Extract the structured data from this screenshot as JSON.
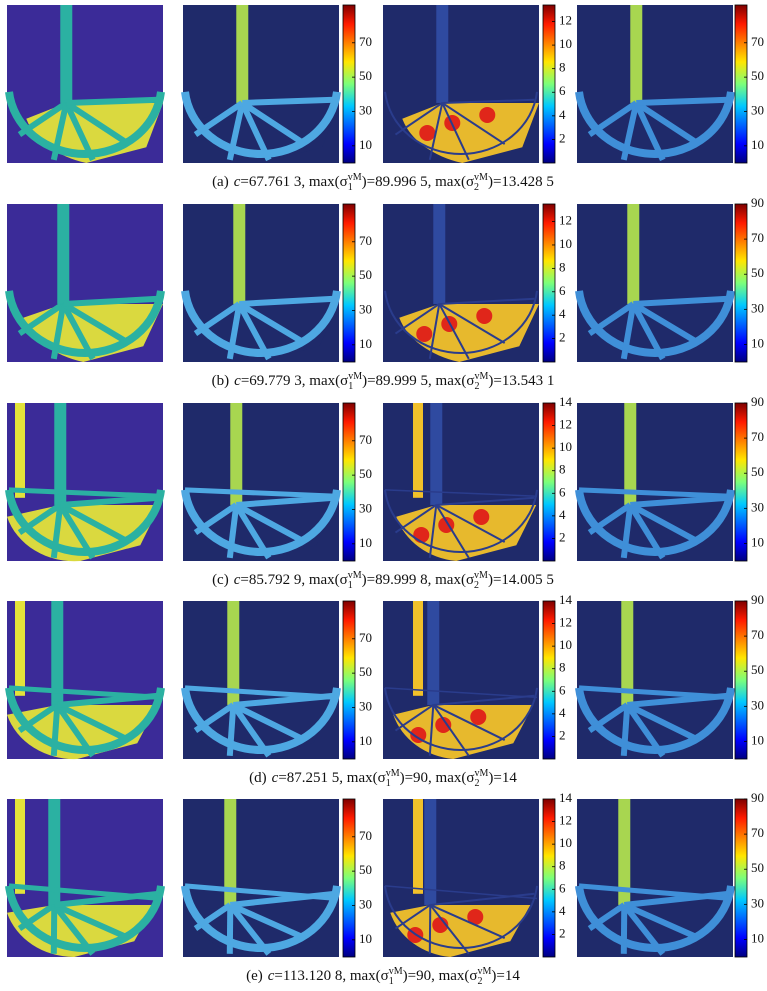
{
  "rows": [
    {
      "caption": [
        {
          "text": "(a)"
        },
        {
          "text": "c",
          "style": "italic"
        },
        {
          "text": "=67.761 3, max(σ"
        },
        {
          "text": "1",
          "style": "sub"
        },
        {
          "text": "vM",
          "style": "sup"
        },
        {
          "text": ")=89.996 5, max(σ"
        },
        {
          "text": "2",
          "style": "sub"
        },
        {
          "text": "vM",
          "style": "sup"
        },
        {
          "text": ")=13.428 5"
        }
      ],
      "colorbars": [
        {
          "lim": [
            0,
            92
          ],
          "ticks": [
            10,
            30,
            50,
            70
          ]
        },
        {
          "lim": [
            0,
            13.4
          ],
          "ticks": [
            2,
            4,
            6,
            8,
            10,
            12
          ]
        },
        {
          "lim": [
            0,
            92
          ],
          "ticks": [
            10,
            30,
            50,
            70
          ]
        }
      ]
    },
    {
      "caption": [
        {
          "text": "(b)"
        },
        {
          "text": "c",
          "style": "italic"
        },
        {
          "text": "=69.779 3, max(σ"
        },
        {
          "text": "1",
          "style": "sub"
        },
        {
          "text": "vM",
          "style": "sup"
        },
        {
          "text": ")=89.999 5, max(σ"
        },
        {
          "text": "2",
          "style": "sub"
        },
        {
          "text": "vM",
          "style": "sup"
        },
        {
          "text": ")=13.543 1"
        }
      ],
      "colorbars": [
        {
          "lim": [
            0,
            92
          ],
          "ticks": [
            10,
            30,
            50,
            70
          ]
        },
        {
          "lim": [
            0,
            13.5
          ],
          "ticks": [
            2,
            4,
            6,
            8,
            10,
            12
          ]
        },
        {
          "lim": [
            0,
            90
          ],
          "ticks": [
            10,
            30,
            50,
            70,
            90
          ]
        }
      ]
    },
    {
      "caption": [
        {
          "text": "(c)"
        },
        {
          "text": "c",
          "style": "italic"
        },
        {
          "text": "=85.792 9, max(σ"
        },
        {
          "text": "1",
          "style": "sub"
        },
        {
          "text": "vM",
          "style": "sup"
        },
        {
          "text": ")=89.999 8, max(σ"
        },
        {
          "text": "2",
          "style": "sub"
        },
        {
          "text": "vM",
          "style": "sup"
        },
        {
          "text": ")=14.005 5"
        }
      ],
      "colorbars": [
        {
          "lim": [
            0,
            92
          ],
          "ticks": [
            10,
            30,
            50,
            70
          ]
        },
        {
          "lim": [
            0,
            14
          ],
          "ticks": [
            2,
            4,
            6,
            8,
            10,
            12,
            14
          ]
        },
        {
          "lim": [
            0,
            90
          ],
          "ticks": [
            10,
            30,
            50,
            70,
            90
          ]
        }
      ]
    },
    {
      "caption": [
        {
          "text": "(d)"
        },
        {
          "text": "c",
          "style": "italic"
        },
        {
          "text": "=87.251 5, max(σ"
        },
        {
          "text": "1",
          "style": "sub"
        },
        {
          "text": "vM",
          "style": "sup"
        },
        {
          "text": ")=90, max(σ"
        },
        {
          "text": "2",
          "style": "sub"
        },
        {
          "text": "vM",
          "style": "sup"
        },
        {
          "text": ")=14"
        }
      ],
      "colorbars": [
        {
          "lim": [
            0,
            92
          ],
          "ticks": [
            10,
            30,
            50,
            70
          ]
        },
        {
          "lim": [
            0,
            14
          ],
          "ticks": [
            2,
            4,
            6,
            8,
            10,
            12,
            14
          ]
        },
        {
          "lim": [
            0,
            90
          ],
          "ticks": [
            10,
            30,
            50,
            70,
            90
          ]
        }
      ]
    },
    {
      "caption": [
        {
          "text": "(e)"
        },
        {
          "text": "c",
          "style": "italic"
        },
        {
          "text": "=113.120 8, max(σ"
        },
        {
          "text": "1",
          "style": "sub"
        },
        {
          "text": "vM",
          "style": "sup"
        },
        {
          "text": ")=90, max(σ"
        },
        {
          "text": "2",
          "style": "sub"
        },
        {
          "text": "vM",
          "style": "sup"
        },
        {
          "text": ")=14"
        }
      ],
      "colorbars": [
        {
          "lim": [
            0,
            92
          ],
          "ticks": [
            10,
            30,
            50,
            70
          ]
        },
        {
          "lim": [
            0,
            14
          ],
          "ticks": [
            2,
            4,
            6,
            8,
            10,
            12,
            14
          ]
        },
        {
          "lim": [
            0,
            90
          ],
          "ticks": [
            10,
            30,
            50,
            70,
            90
          ]
        }
      ]
    }
  ]
}
